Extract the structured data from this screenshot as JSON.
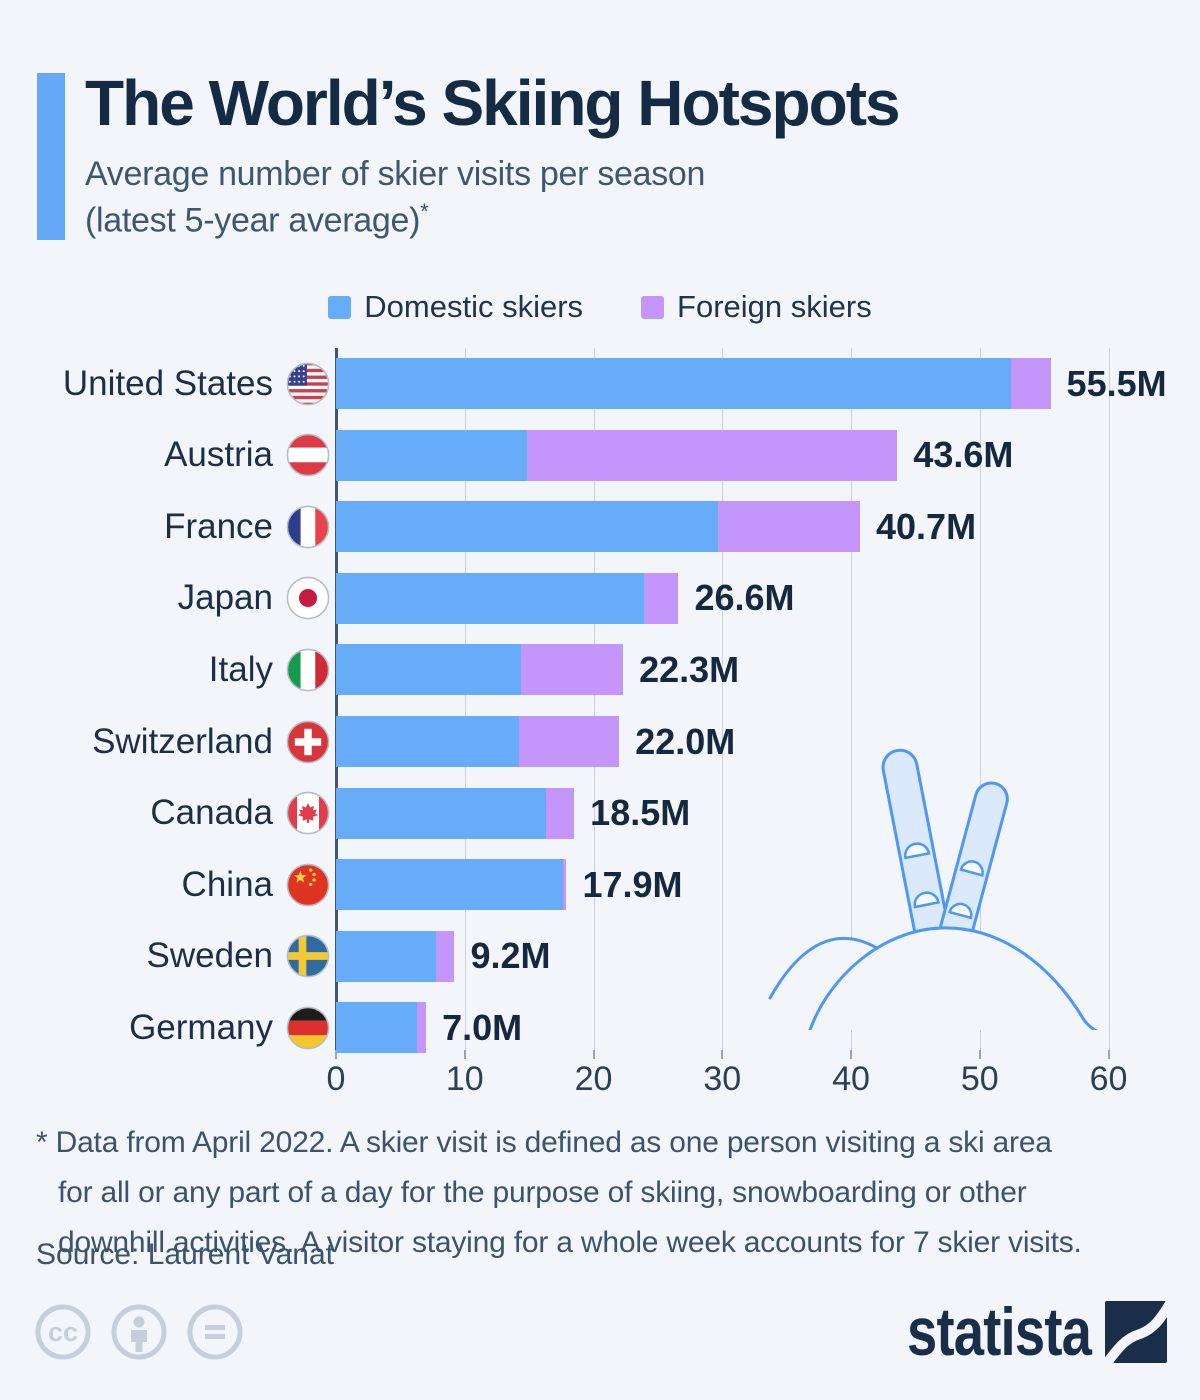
{
  "header": {
    "title": "The World’s Skiing Hotspots",
    "subtitle_line1": "Average number of skier visits per season",
    "subtitle_line2": "(latest 5-year average)",
    "footnote_marker": "*"
  },
  "legend": [
    {
      "label": "Domestic skiers",
      "color": "#67acf8"
    },
    {
      "label": "Foreign skiers",
      "color": "#c495fa"
    }
  ],
  "chart_data": {
    "type": "bar",
    "orientation": "horizontal",
    "stacked": true,
    "unit": "million skier visits",
    "categories": [
      "United States",
      "Austria",
      "France",
      "Japan",
      "Italy",
      "Switzerland",
      "Canada",
      "China",
      "Sweden",
      "Germany"
    ],
    "flags": [
      "us",
      "austria",
      "france",
      "japan",
      "italy",
      "switzerland",
      "canada",
      "china",
      "sweden",
      "germany"
    ],
    "series": [
      {
        "name": "Domestic skiers",
        "color": "#67acf8",
        "values": [
          52.4,
          14.8,
          29.7,
          23.9,
          14.4,
          14.2,
          16.3,
          17.6,
          7.8,
          6.3
        ]
      },
      {
        "name": "Foreign skiers",
        "color": "#c495fa",
        "values": [
          3.1,
          28.8,
          11.0,
          2.7,
          7.9,
          7.8,
          2.2,
          0.3,
          1.4,
          0.7
        ]
      }
    ],
    "totals": [
      55.5,
      43.6,
      40.7,
      26.6,
      22.3,
      22.0,
      18.5,
      17.9,
      9.2,
      7.0
    ],
    "total_labels": [
      "55.5M",
      "43.6M",
      "40.7M",
      "26.6M",
      "22.3M",
      "22.0M",
      "18.5M",
      "17.9M",
      "9.2M",
      "7.0M"
    ],
    "x_ticks": [
      0,
      10,
      20,
      30,
      40,
      50,
      60
    ],
    "xlim": [
      0,
      60
    ],
    "grid": true,
    "legend_position": "top"
  },
  "footnote_lines": [
    "* Data from April 2022. A skier visit is defined as one person visiting a ski area",
    "for all or any part of a day for the purpose of skiing, snowboarding or other",
    "downhill activities. A visitor staying for a whole week accounts for 7 skier visits."
  ],
  "source": "Source: Laurent Vanat",
  "footer": {
    "brand": "statista",
    "license_icons": [
      "cc",
      "attribution",
      "nd"
    ]
  },
  "colors": {
    "background": "#f2f5f9",
    "accent": "#64a9f7",
    "domestic_bar": "#67acf8",
    "foreign_bar": "#c495fa",
    "title": "#152a43",
    "subtitle": "#3e566e",
    "brand_navy": "#1a2d49"
  }
}
